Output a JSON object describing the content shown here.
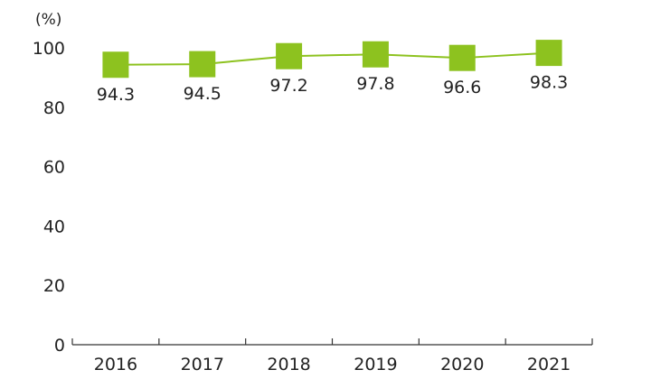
{
  "chart_data": {
    "type": "line",
    "ylabel": "(%)",
    "xlabel": "",
    "title": "",
    "categories": [
      "2016",
      "2017",
      "2018",
      "2019",
      "2020",
      "2021"
    ],
    "series": [
      {
        "values": [
          94.3,
          94.5,
          97.2,
          97.8,
          96.6,
          98.3
        ]
      }
    ],
    "ylim": [
      0,
      100
    ],
    "yticks": [
      0,
      20,
      40,
      60,
      80,
      100
    ],
    "grid": false,
    "legend": "none",
    "marker": "square",
    "colors": {
      "series": "#8dc21f",
      "axis": "#333333",
      "text": "#222222"
    }
  }
}
